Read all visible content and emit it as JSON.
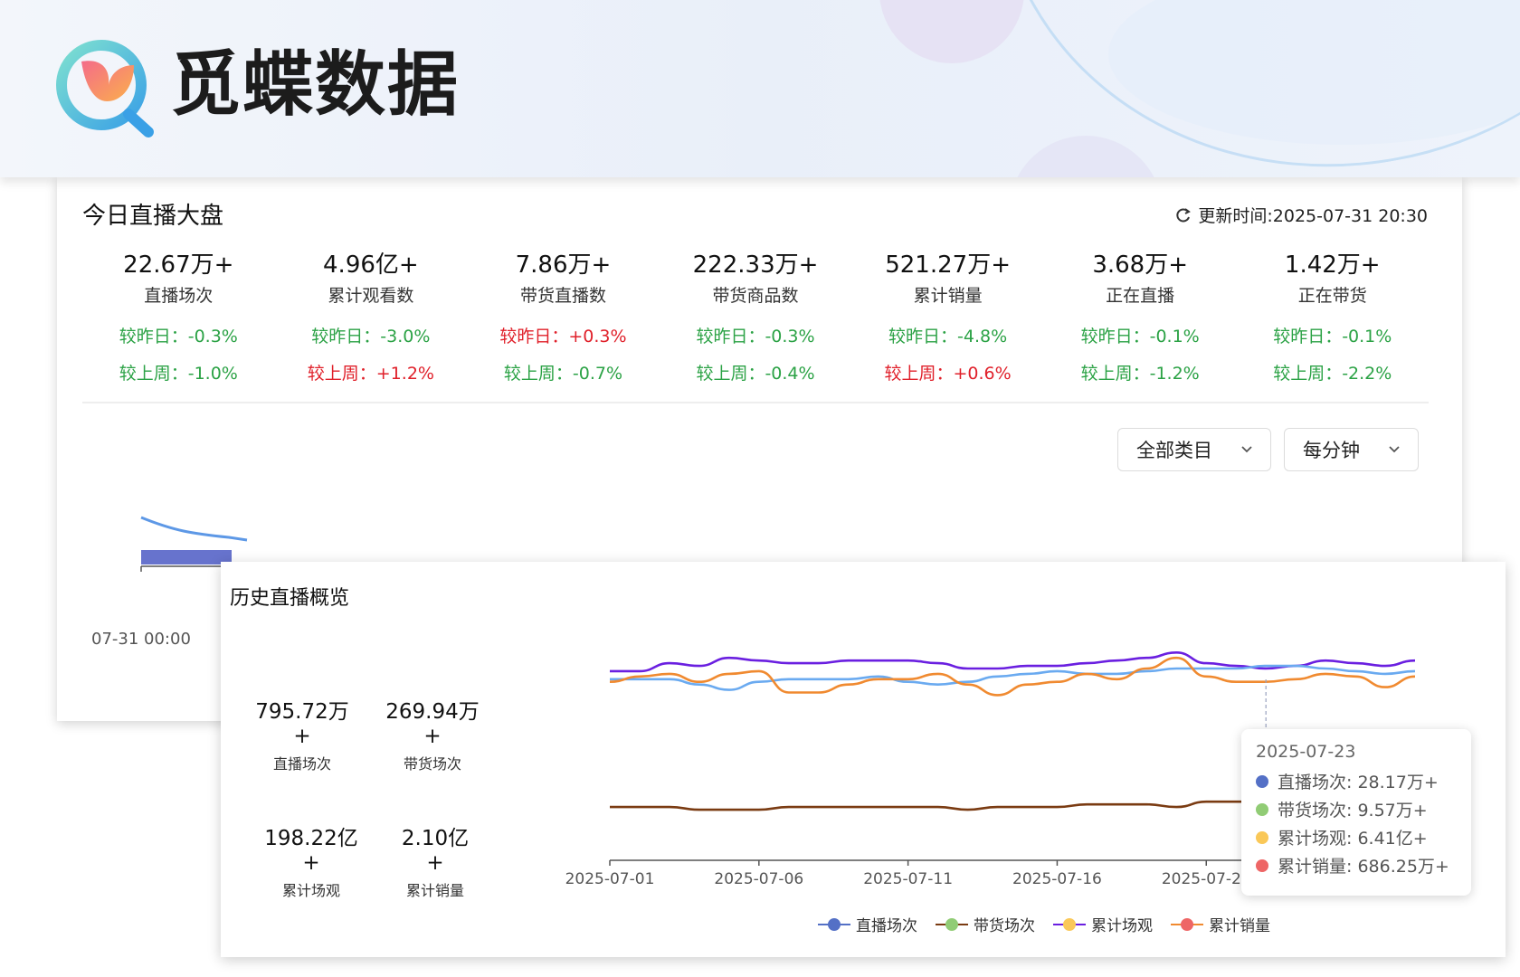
{
  "brand": {
    "name": "觅蝶数据",
    "logo": "butterfly-magnifier-logo"
  },
  "today": {
    "title": "今日直播大盘",
    "update_label": "更新时间:2025-07-31 20:30",
    "stats": [
      {
        "value": "22.67万+",
        "label": "直播场次",
        "day": "较昨日：-0.3%",
        "day_trend": "down",
        "week": "较上周：-1.0%",
        "week_trend": "down"
      },
      {
        "value": "4.96亿+",
        "label": "累计观看数",
        "day": "较昨日：-3.0%",
        "day_trend": "down",
        "week": "较上周：+1.2%",
        "week_trend": "up"
      },
      {
        "value": "7.86万+",
        "label": "带货直播数",
        "day": "较昨日：+0.3%",
        "day_trend": "up",
        "week": "较上周：-0.7%",
        "week_trend": "down"
      },
      {
        "value": "222.33万+",
        "label": "带货商品数",
        "day": "较昨日：-0.3%",
        "day_trend": "down",
        "week": "较上周：-0.4%",
        "week_trend": "down"
      },
      {
        "value": "521.27万+",
        "label": "累计销量",
        "day": "较昨日：-4.8%",
        "day_trend": "down",
        "week": "较上周：+0.6%",
        "week_trend": "up"
      },
      {
        "value": "3.68万+",
        "label": "正在直播",
        "day": "较昨日：-0.1%",
        "day_trend": "down",
        "week": "较上周：-1.2%",
        "week_trend": "down"
      },
      {
        "value": "1.42万+",
        "label": "正在带货",
        "day": "较昨日：-0.1%",
        "day_trend": "down",
        "week": "较上周：-2.2%",
        "week_trend": "down"
      }
    ],
    "category_select": "全部类目",
    "interval_select": "每分钟",
    "axis_start": "07-31 00:00"
  },
  "history": {
    "title": "历史直播概览",
    "stats": [
      {
        "value": "795.72万+",
        "label": "直播场次"
      },
      {
        "value": "269.94万+",
        "label": "带货场次"
      },
      {
        "value": "198.22亿+",
        "label": "累计场观"
      },
      {
        "value": "2.10亿+",
        "label": "累计销量"
      }
    ],
    "tooltip": {
      "date": "2025-07-23",
      "rows": [
        {
          "text": "直播场次: 28.17万+",
          "color": "#5470c6"
        },
        {
          "text": "带货场次: 9.57万+",
          "color": "#91cc75"
        },
        {
          "text": "累计场观: 6.41亿+",
          "color": "#fac858"
        },
        {
          "text": "累计销量: 686.25万+",
          "color": "#ee6666"
        }
      ]
    }
  },
  "colors": {
    "down": "#2ba245",
    "up": "#e0202a",
    "line_purple": "#6a1fe0",
    "line_blue": "#6aaaf0",
    "line_orange": "#f08a30",
    "line_brown": "#7a3b12",
    "today_line": "#5d98e6",
    "today_bars": "#5664c8"
  },
  "chart_data": {
    "type": "line",
    "x": [
      "2025-07-01",
      "2025-07-02",
      "2025-07-03",
      "2025-07-04",
      "2025-07-05",
      "2025-07-06",
      "2025-07-07",
      "2025-07-08",
      "2025-07-09",
      "2025-07-10",
      "2025-07-11",
      "2025-07-12",
      "2025-07-13",
      "2025-07-14",
      "2025-07-15",
      "2025-07-16",
      "2025-07-17",
      "2025-07-18",
      "2025-07-19",
      "2025-07-20",
      "2025-07-21",
      "2025-07-22",
      "2025-07-23",
      "2025-07-24",
      "2025-07-25",
      "2025-07-26",
      "2025-07-27",
      "2025-07-28"
    ],
    "xticks": [
      "2025-07-01",
      "2025-07-06",
      "2025-07-11",
      "2025-07-16",
      "2025-07-21"
    ],
    "legend": [
      "直播场次",
      "带货场次",
      "累计场观",
      "累计销量"
    ],
    "legend_colors": [
      "#5470c6",
      "#91cc75",
      "#fac858",
      "#ee6666"
    ],
    "series": [
      {
        "name": "累计场观",
        "color": "#6a1fe0",
        "values": [
          7.1,
          7.1,
          7.4,
          7.3,
          7.6,
          7.5,
          7.4,
          7.4,
          7.5,
          7.5,
          7.5,
          7.4,
          7.2,
          7.2,
          7.3,
          7.3,
          7.4,
          7.5,
          7.6,
          7.8,
          7.4,
          7.3,
          7.2,
          7.3,
          7.5,
          7.4,
          7.3,
          7.5
        ]
      },
      {
        "name": "直播场次",
        "color": "#6aaaf0",
        "values": [
          6.8,
          6.8,
          6.8,
          6.6,
          6.4,
          6.7,
          6.8,
          6.8,
          6.8,
          6.9,
          6.7,
          6.6,
          6.7,
          6.9,
          7.0,
          7.1,
          7.0,
          7.0,
          7.1,
          7.2,
          7.2,
          7.2,
          7.3,
          7.3,
          7.2,
          7.1,
          7.0,
          7.1
        ]
      },
      {
        "name": "直播场次-orange",
        "color": "#f08a30",
        "values": [
          6.7,
          6.9,
          7.0,
          6.7,
          7.0,
          7.1,
          6.3,
          6.3,
          6.6,
          6.8,
          6.8,
          7.0,
          6.6,
          6.2,
          6.6,
          6.7,
          7.0,
          6.8,
          7.2,
          7.6,
          6.9,
          6.7,
          6.7,
          6.8,
          7.0,
          6.9,
          6.5,
          6.9
        ]
      },
      {
        "name": "累计销量-brown",
        "color": "#7a3b12",
        "values": [
          2.0,
          2.0,
          2.0,
          1.9,
          1.9,
          1.9,
          2.0,
          2.0,
          2.0,
          2.0,
          2.0,
          2.0,
          1.9,
          2.0,
          2.0,
          2.0,
          2.1,
          2.1,
          2.1,
          2.0,
          2.2,
          2.2,
          2.2,
          2.2,
          2.2,
          2.2,
          2.2,
          2.2
        ]
      }
    ]
  }
}
